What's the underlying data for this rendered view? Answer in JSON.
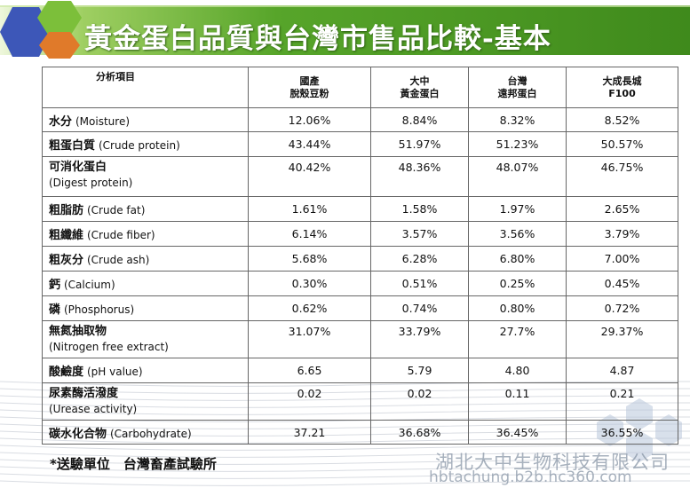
{
  "header": {
    "title": "黃金蛋白品質與台灣市售品比較-基本",
    "colors": {
      "banner_start": "#e8f4d0",
      "banner_end": "#3f8a1c",
      "hex_blue": "#3d57b8",
      "hex_green": "#7cbf3a",
      "hex_orange": "#e07a2a"
    }
  },
  "table": {
    "corner_header": "分析項目",
    "columns": [
      {
        "line1": "國產",
        "line2": "脫殼豆粉"
      },
      {
        "line1": "大中",
        "line2": "黃金蛋白"
      },
      {
        "line1": "台灣",
        "line2": "遠邦蛋白"
      },
      {
        "line1": "大成長城",
        "line2": "F100"
      }
    ],
    "rows": [
      {
        "zh": "水分",
        "en": "(Moisture)",
        "values": [
          "12.06%",
          "8.84%",
          "8.32%",
          "8.52%"
        ]
      },
      {
        "zh": "粗蛋白質",
        "en": "(Crude protein)",
        "values": [
          "43.44%",
          "51.97%",
          "51.23%",
          "50.57%"
        ]
      },
      {
        "zh": "可消化蛋白",
        "en": "(Digest protein)",
        "values": [
          "40.42%",
          "48.36%",
          "48.07%",
          "46.75%"
        ]
      },
      {
        "zh": "粗脂肪",
        "en": "(Crude fat)",
        "values": [
          "1.61%",
          "1.58%",
          "1.97%",
          "2.65%"
        ]
      },
      {
        "zh": "粗纖維",
        "en": "(Crude fiber)",
        "values": [
          "6.14%",
          "3.57%",
          "3.56%",
          "3.79%"
        ]
      },
      {
        "zh": "粗灰分",
        "en": "(Crude ash)",
        "values": [
          "5.68%",
          "6.28%",
          "6.80%",
          "7.00%"
        ]
      },
      {
        "zh": "鈣",
        "en": "(Calcium)",
        "values": [
          "0.30%",
          "0.51%",
          "0.25%",
          "0.45%"
        ]
      },
      {
        "zh": "磷",
        "en": "(Phosphorus)",
        "values": [
          "0.62%",
          "0.74%",
          "0.80%",
          "0.72%"
        ]
      },
      {
        "zh": "無氮抽取物",
        "en": "(Nitrogen free extract)",
        "values": [
          "31.07%",
          "33.79%",
          "27.7%",
          "29.37%"
        ]
      },
      {
        "zh": "酸鹼度",
        "en": "(pH value)",
        "values": [
          "6.65",
          "5.79",
          "4.80",
          "4.87"
        ]
      },
      {
        "zh": "尿素酶活潑度",
        "en": "(Urease activity)",
        "values": [
          "0.02",
          "0.02",
          "0.11",
          "0.21"
        ]
      },
      {
        "zh": "碳水化合物",
        "en": "(Carbohydrate)",
        "values": [
          "37.21",
          "36.68%",
          "36.45%",
          "36.55%"
        ]
      }
    ]
  },
  "footnote": "*送驗單位　台灣畜產試驗所",
  "watermark": {
    "company": "湖北大中生物科技有限公司",
    "url": "hbtachung.b2b.hc360.com"
  }
}
